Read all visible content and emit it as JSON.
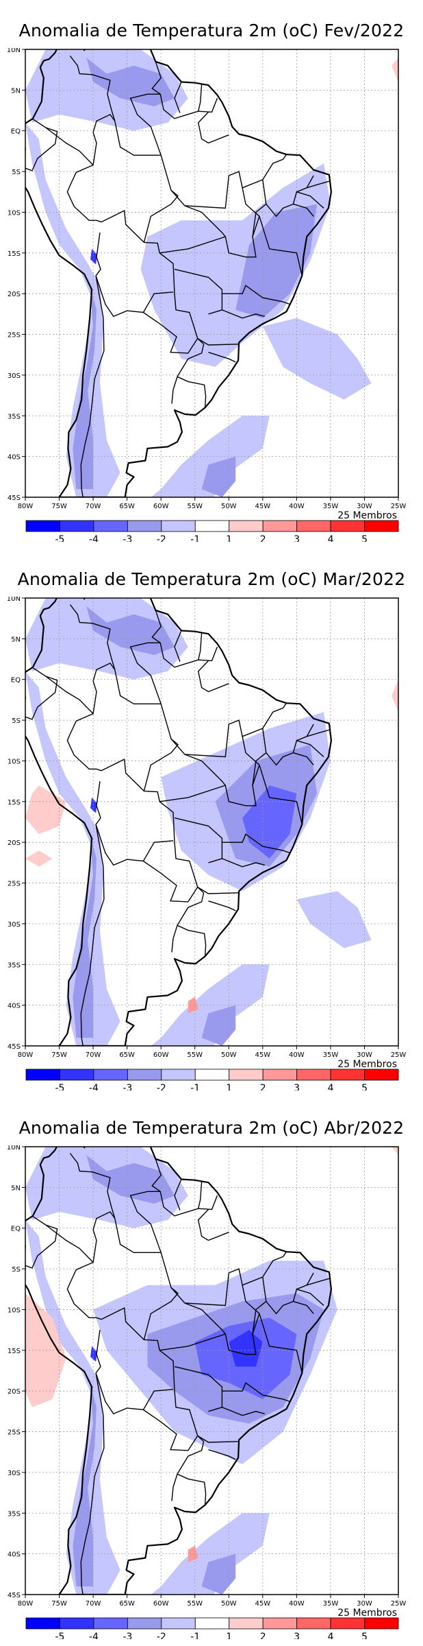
{
  "lat_labels": [
    "10N",
    "5N",
    "EQ",
    "5S",
    "10S",
    "15S",
    "20S",
    "25S",
    "30S",
    "35S",
    "40S",
    "45S"
  ],
  "lon_labels": [
    "80W",
    "75W",
    "70W",
    "65W",
    "60W",
    "55W",
    "50W",
    "45W",
    "40W",
    "35W",
    "30W",
    "25W"
  ],
  "legend": {
    "colors": [
      "#0000ff",
      "#3333ff",
      "#6666ff",
      "#9999ee",
      "#c6c6ff",
      "#ffffff",
      "#ffcccc",
      "#ff9999",
      "#ff6666",
      "#ff3333",
      "#ff0000"
    ],
    "labels": [
      "-5",
      "-4",
      "-3",
      "-2",
      "-1",
      "1",
      "2",
      "3",
      "4",
      "5"
    ],
    "members": "25 Membros"
  },
  "panels": [
    {
      "title": "Anomalia de Temperatura 2m (oC) Fev/2022"
    },
    {
      "title": "Anomalia de Temperatura 2m (oC) Mar/2022"
    },
    {
      "title": "Anomalia de Temperatura 2m (oC) Abr/2022"
    }
  ]
}
